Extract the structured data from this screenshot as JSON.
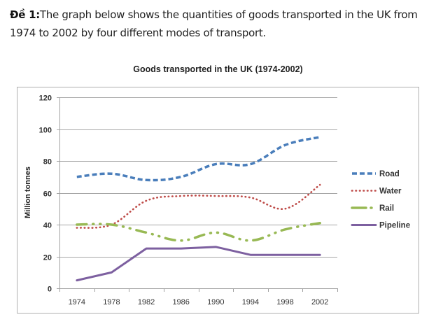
{
  "intro": {
    "label": "Đề 1:",
    "text": "The graph below shows the quantities of goods transported in the UK from 1974 to 2002 by four different modes of transport."
  },
  "chart_data": {
    "type": "line",
    "title": "Goods transported in the UK (1974-2002)",
    "xlabel": "",
    "ylabel": "Million tonnes",
    "x": [
      "1974",
      "1978",
      "1982",
      "1986",
      "1990",
      "1994",
      "1998",
      "2002"
    ],
    "ylim": [
      0,
      120
    ],
    "yticks": [
      0,
      20,
      40,
      60,
      80,
      100,
      120
    ],
    "grid": true,
    "legend": "right",
    "series": [
      {
        "name": "Road",
        "style": "dashed",
        "color": "#4a7ebb",
        "values": [
          70,
          72,
          68,
          70,
          78,
          78,
          90,
          95
        ]
      },
      {
        "name": "Water",
        "style": "dotted",
        "color": "#be4b48",
        "values": [
          38,
          40,
          55,
          58,
          58,
          57,
          50,
          65
        ]
      },
      {
        "name": "Rail",
        "style": "dashdot",
        "color": "#98b954",
        "values": [
          40,
          40,
          35,
          30,
          35,
          30,
          37,
          41
        ]
      },
      {
        "name": "Pipeline",
        "style": "solid",
        "color": "#7d60a0",
        "values": [
          5,
          10,
          25,
          25,
          26,
          21,
          21,
          21
        ]
      }
    ]
  }
}
